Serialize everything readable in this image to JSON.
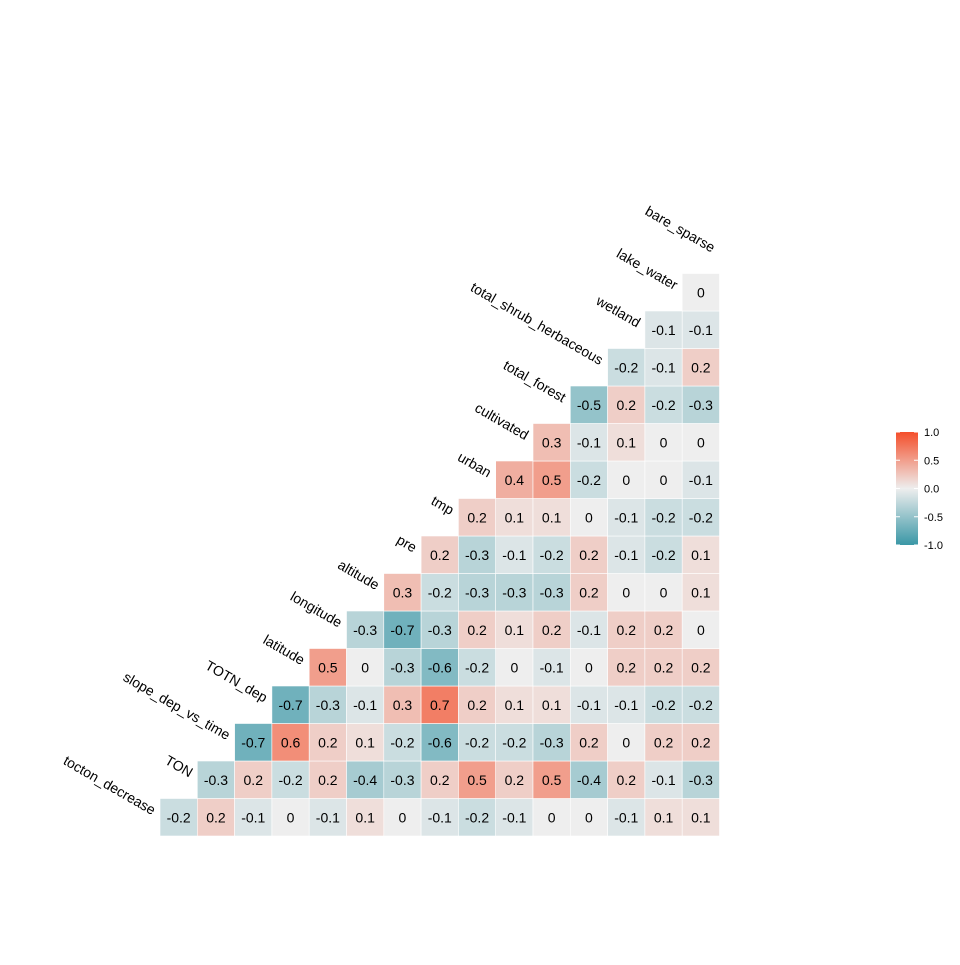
{
  "chart_data": {
    "type": "heatmap",
    "subtype": "lower-triangle correlation matrix",
    "variables": [
      "tocton_decrease",
      "TON",
      "slope_dep_vs_time",
      "TOTN_dep",
      "latitude",
      "longitude",
      "altitude",
      "pre",
      "tmp",
      "urban",
      "cultivated",
      "total_forest",
      "total_shrub_herbaceous",
      "wetland",
      "lake_water",
      "bare_sparse"
    ],
    "rows": [
      {
        "label": "tocton_decrease",
        "values": [
          -0.2,
          0.2,
          -0.1,
          0,
          -0.1,
          0.1,
          0,
          -0.1,
          -0.2,
          -0.1,
          0,
          0,
          -0.1,
          0.1,
          0.1
        ]
      },
      {
        "label": "TON",
        "values": [
          -0.3,
          0.2,
          -0.2,
          0.2,
          -0.4,
          -0.3,
          0.2,
          0.5,
          0.2,
          0.5,
          -0.4,
          0.2,
          -0.1,
          -0.3
        ]
      },
      {
        "label": "slope_dep_vs_time",
        "values": [
          -0.7,
          0.6,
          0.2,
          0.1,
          -0.2,
          -0.6,
          -0.2,
          -0.2,
          -0.3,
          0.2,
          0,
          0.2,
          0.2
        ]
      },
      {
        "label": "TOTN_dep",
        "values": [
          -0.7,
          -0.3,
          -0.1,
          0.3,
          0.7,
          0.2,
          0.1,
          0.1,
          -0.1,
          -0.1,
          -0.2,
          -0.2
        ]
      },
      {
        "label": "latitude",
        "values": [
          0.5,
          0,
          -0.3,
          -0.6,
          -0.2,
          0,
          -0.1,
          0,
          0.2,
          0.2,
          0.2
        ]
      },
      {
        "label": "longitude",
        "values": [
          -0.3,
          -0.7,
          -0.3,
          0.2,
          0.1,
          0.2,
          -0.1,
          0.2,
          0.2,
          0
        ]
      },
      {
        "label": "altitude",
        "values": [
          0.3,
          -0.2,
          -0.3,
          -0.3,
          -0.3,
          0.2,
          0,
          0,
          0.1
        ]
      },
      {
        "label": "pre",
        "values": [
          0.2,
          -0.3,
          -0.1,
          -0.2,
          0.2,
          -0.1,
          -0.2,
          0.1
        ]
      },
      {
        "label": "tmp",
        "values": [
          0.2,
          0.1,
          0.1,
          0,
          -0.1,
          -0.2,
          -0.2
        ]
      },
      {
        "label": "urban",
        "values": [
          0.4,
          0.5,
          -0.2,
          0,
          0,
          -0.1
        ]
      },
      {
        "label": "cultivated",
        "values": [
          0.3,
          -0.1,
          0.1,
          0,
          0
        ]
      },
      {
        "label": "total_forest",
        "values": [
          -0.5,
          0.2,
          -0.2,
          -0.3
        ]
      },
      {
        "label": "total_shrub_herbaceous",
        "values": [
          -0.2,
          -0.1,
          0.2
        ]
      },
      {
        "label": "wetland",
        "values": [
          -0.1,
          -0.1
        ]
      },
      {
        "label": "lake_water",
        "values": [
          0
        ]
      }
    ],
    "legend": {
      "position": "right",
      "limits": [
        -1.0,
        1.0
      ],
      "tick_labels": [
        "1.0",
        "0.5",
        "0.0",
        "-0.5",
        "-1.0"
      ],
      "colors": {
        "low": "#3A97A6",
        "mid": "#EEEEEE",
        "high": "#F44E2A"
      }
    },
    "grid": false,
    "title": "",
    "xlabel": "",
    "ylabel": ""
  }
}
